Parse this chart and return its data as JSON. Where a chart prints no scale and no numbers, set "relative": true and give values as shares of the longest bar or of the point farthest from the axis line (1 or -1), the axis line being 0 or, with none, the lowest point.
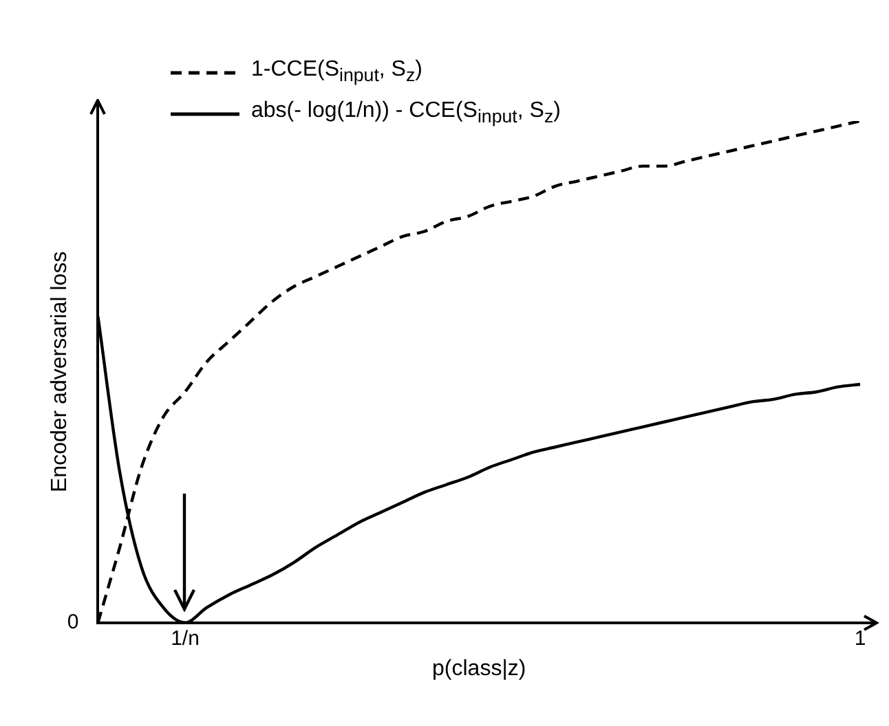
{
  "chart_data": {
    "type": "line",
    "xlabel": "p(class|z)",
    "ylabel": "Encoder adversarial loss",
    "relative": true,
    "grid": false,
    "legend": "top",
    "annotations": [
      "0"
    ],
    "categories": [
      null,
      null,
      null,
      null,
      "1/n",
      null,
      null,
      null,
      null,
      null,
      null,
      null,
      null,
      null,
      null,
      null,
      null,
      null,
      null,
      null,
      null,
      null,
      null,
      null,
      null,
      null,
      null,
      null,
      null,
      null,
      null,
      null,
      null,
      null,
      null,
      "1"
    ],
    "series": [
      {
        "name": "1-CCE(S$_{input}$, S$_{z}$)",
        "color": "#000000",
        "line_style": "dashed",
        "values": [
          0,
          0.15,
          0.31,
          0.41,
          0.46,
          0.52,
          0.56,
          0.6,
          0.64,
          0.67,
          0.69,
          0.71,
          0.73,
          0.75,
          0.77,
          0.78,
          0.8,
          0.81,
          0.83,
          0.84,
          0.85,
          0.87,
          0.88,
          0.89,
          0.9,
          0.91,
          0.91,
          0.92,
          0.93,
          0.94,
          0.95,
          0.96,
          0.97,
          0.98,
          0.99,
          1
        ]
      },
      {
        "name": "abs(- log(1/n)) - CCE(S$_{input}$, S$_{z}$)",
        "color": "#000000",
        "line_style": "solid",
        "values": [
          0.61,
          0.3,
          0.11,
          0.03,
          0,
          0.03,
          0.055,
          0.075,
          0.095,
          0.12,
          0.15,
          0.175,
          0.2,
          0.22,
          0.24,
          0.26,
          0.275,
          0.29,
          0.31,
          0.325,
          0.34,
          0.35,
          0.36,
          0.37,
          0.38,
          0.39,
          0.4,
          0.41,
          0.42,
          0.43,
          0.44,
          0.445,
          0.455,
          0.46,
          0.47,
          0.475
        ]
      }
    ]
  }
}
